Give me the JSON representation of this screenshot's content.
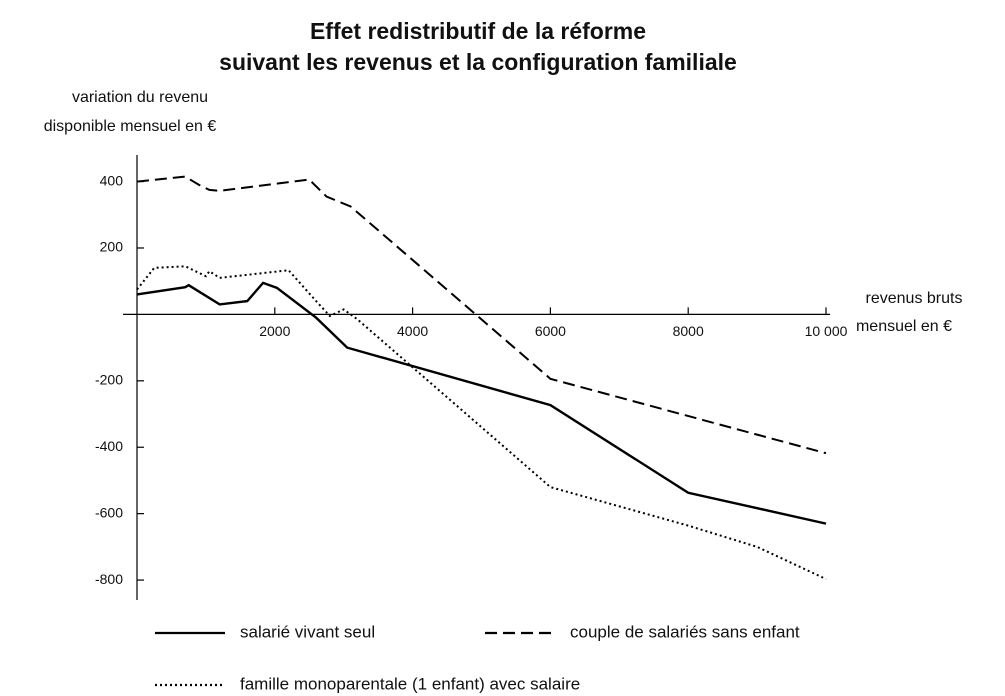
{
  "chart_data": {
    "type": "line",
    "title": [
      "Effet redistributif de la réforme",
      "suivant les revenus et la configuration familiale"
    ],
    "ylabel": [
      "variation du revenu",
      "disponible mensuel en €"
    ],
    "xlabel": [
      "revenus bruts",
      "mensuel en €"
    ],
    "xlim": [
      0,
      10000
    ],
    "xticks": [
      2000,
      4000,
      6000,
      8000,
      {
        "value": 10000,
        "label": "10 000"
      }
    ],
    "ylim": [
      -860,
      480
    ],
    "yticks": [
      -800,
      -600,
      -400,
      -200,
      200,
      400
    ],
    "series": [
      {
        "name": "salarié vivant seul",
        "color": "#000000",
        "dash": "solid",
        "x": [
          0,
          700,
          750,
          1200,
          1600,
          1830,
          2030,
          2600,
          3050,
          6000,
          8000,
          10000
        ],
        "values": [
          60,
          82,
          88,
          30,
          40,
          95,
          80,
          -10,
          -100,
          -273,
          -537,
          -630
        ]
      },
      {
        "name": "couple de salariés sans enfant",
        "color": "#000000",
        "dash": "dashed",
        "x": [
          0,
          700,
          900,
          1050,
          1200,
          2500,
          2750,
          3100,
          6000,
          10000
        ],
        "values": [
          400,
          415,
          390,
          375,
          372,
          406,
          355,
          325,
          -194,
          -418
        ]
      },
      {
        "name": "famille monoparentale (1 enfant) avec salaire",
        "color": "#000000",
        "dash": "dotted",
        "x": [
          0,
          250,
          700,
          1000,
          1050,
          1200,
          2200,
          2600,
          2800,
          3000,
          3200,
          6000,
          8000,
          9000,
          10000
        ],
        "values": [
          75,
          140,
          145,
          115,
          130,
          110,
          133,
          40,
          -5,
          15,
          -15,
          -520,
          -636,
          -700,
          -797
        ]
      }
    ]
  }
}
